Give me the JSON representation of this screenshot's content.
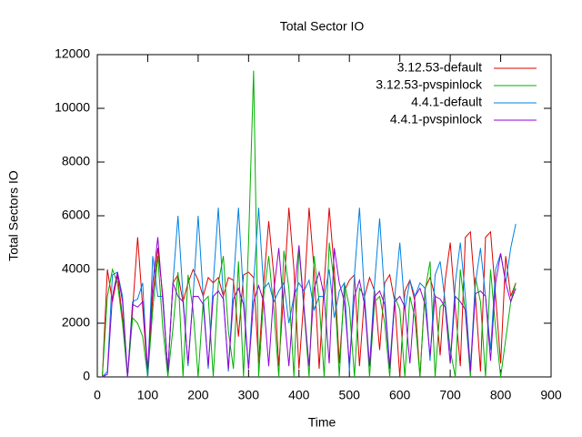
{
  "chart_data": {
    "type": "line",
    "title": "Total Sector IO",
    "xlabel": "Time",
    "ylabel": "Total Sectors IO",
    "x": [
      10,
      20,
      30,
      40,
      50,
      60,
      70,
      80,
      90,
      100,
      110,
      120,
      130,
      140,
      150,
      160,
      170,
      180,
      190,
      200,
      210,
      220,
      230,
      240,
      250,
      260,
      270,
      280,
      290,
      300,
      310,
      320,
      330,
      340,
      350,
      360,
      370,
      380,
      390,
      400,
      410,
      420,
      430,
      440,
      450,
      460,
      470,
      480,
      490,
      500,
      510,
      520,
      530,
      540,
      550,
      560,
      570,
      580,
      590,
      600,
      610,
      620,
      630,
      640,
      650,
      660,
      670,
      680,
      690,
      700,
      710,
      720,
      730,
      740,
      750,
      760,
      770,
      780,
      790,
      800,
      810,
      820,
      830
    ],
    "series": [
      {
        "name": "3.12.53-default",
        "color": "#e00000",
        "values": [
          0,
          4000,
          2800,
          3800,
          2200,
          0,
          2500,
          5200,
          2600,
          0,
          3000,
          4800,
          3000,
          200,
          3500,
          3800,
          2800,
          3500,
          4000,
          3600,
          3000,
          3700,
          3500,
          3700,
          3000,
          3700,
          3600,
          1500,
          3800,
          3900,
          3700,
          500,
          3500,
          5800,
          3800,
          400,
          3200,
          6300,
          4000,
          300,
          3000,
          6300,
          4000,
          300,
          3500,
          6300,
          4000,
          500,
          3200,
          3600,
          3800,
          400,
          3000,
          3700,
          3200,
          1000,
          3500,
          3800,
          2800,
          0,
          3200,
          3600,
          2800,
          0,
          3300,
          3700,
          3000,
          800,
          3600,
          5000,
          2600,
          400,
          5200,
          5400,
          3000,
          200,
          5200,
          5400,
          3000,
          500,
          4500,
          3000,
          3500
        ]
      },
      {
        "name": "3.12.53-pvspinlock",
        "color": "#00b000",
        "values": [
          0,
          3000,
          4000,
          3500,
          2000,
          0,
          2200,
          2000,
          1500,
          0,
          2500,
          4500,
          1800,
          0,
          1800,
          3900,
          0,
          3800,
          2500,
          0,
          2800,
          3000,
          0,
          3500,
          4500,
          1700,
          300,
          4300,
          0,
          5000,
          11400,
          0,
          3000,
          4500,
          2500,
          0,
          4700,
          3300,
          0,
          4800,
          2500,
          0,
          4500,
          2800,
          0,
          5000,
          3500,
          0,
          3500,
          2600,
          0,
          3300,
          3000,
          0,
          2800,
          3000,
          2000,
          0,
          3000,
          2500,
          0,
          3000,
          2200,
          0,
          3200,
          4300,
          0,
          2600,
          2800,
          1000,
          0,
          4000,
          2400,
          0,
          3700,
          2800,
          0,
          4000,
          1800,
          0,
          1400,
          2800,
          3500
        ]
      },
      {
        "name": "4.4.1-default",
        "color": "#0080e0",
        "values": [
          0,
          200,
          3800,
          3900,
          3000,
          0,
          2800,
          2900,
          3500,
          0,
          4500,
          3000,
          3000,
          200,
          3500,
          6000,
          3000,
          400,
          3000,
          6000,
          3000,
          300,
          3500,
          6300,
          3000,
          200,
          3500,
          6300,
          3000,
          300,
          3500,
          6300,
          3300,
          3500,
          2800,
          3200,
          3500,
          2000,
          3000,
          3500,
          3200,
          3600,
          2500,
          3000,
          3000,
          4000,
          2200,
          3200,
          3500,
          200,
          3800,
          6300,
          3000,
          400,
          3500,
          5900,
          3000,
          400,
          3000,
          5000,
          2500,
          3600,
          3000,
          3500,
          3300,
          600,
          3800,
          4300,
          2800,
          500,
          3500,
          5000,
          3000,
          300,
          3500,
          4800,
          3000,
          1000,
          4000,
          4600,
          3500,
          4800,
          5700
        ]
      },
      {
        "name": "4.4.1-pvspinlock",
        "color": "#9400d3",
        "values": [
          0,
          100,
          3000,
          3900,
          2800,
          0,
          2700,
          2600,
          2800,
          300,
          3500,
          5200,
          2800,
          200,
          3500,
          3000,
          2800,
          500,
          3000,
          3000,
          2700,
          400,
          3000,
          3200,
          2900,
          300,
          2900,
          3300,
          2700,
          300,
          2800,
          3400,
          2800,
          400,
          3200,
          4800,
          2500,
          400,
          3000,
          4900,
          2600,
          400,
          3300,
          3900,
          3000,
          500,
          4800,
          3500,
          2800,
          500,
          3000,
          3600,
          2700,
          400,
          3000,
          3200,
          2700,
          300,
          2800,
          3000,
          2600,
          500,
          3000,
          3300,
          2700,
          800,
          3000,
          2900,
          2600,
          500,
          3000,
          2800,
          2500,
          200,
          3100,
          3200,
          3000,
          600,
          3500,
          4600,
          3500,
          2800,
          3300
        ]
      }
    ],
    "xlim": [
      0,
      900
    ],
    "xticks": [
      0,
      100,
      200,
      300,
      400,
      500,
      600,
      700,
      800,
      900
    ],
    "ylim": [
      0,
      12000
    ],
    "yticks": [
      0,
      2000,
      4000,
      6000,
      8000,
      10000,
      12000
    ],
    "legend": "top-right",
    "grid": false
  }
}
